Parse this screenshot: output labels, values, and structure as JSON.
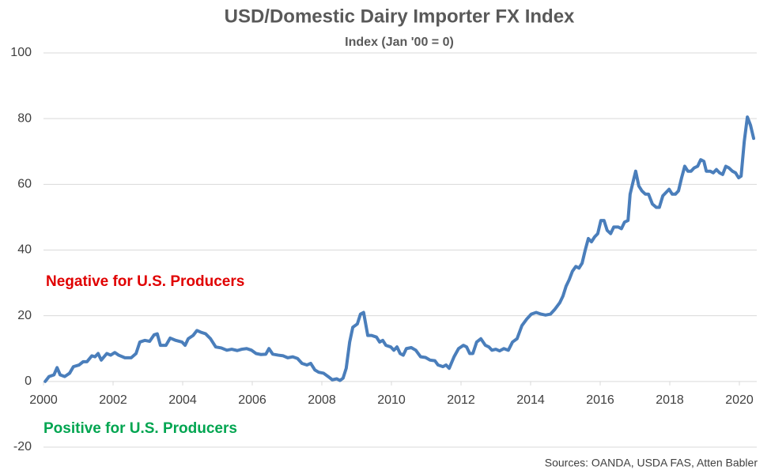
{
  "chart_data": {
    "type": "line",
    "title": "USD/Domestic Dairy Importer FX Index",
    "subtitle": "Index (Jan '00 = 0)",
    "source": "Sources: OANDA, USDA FAS, Atten Babler",
    "annotations": [
      {
        "text": "Negative for U.S. Producers",
        "color": "#e00000"
      },
      {
        "text": "Positive for U.S. Producers",
        "color": "#00a550"
      }
    ],
    "xlim": [
      2000,
      2020.5
    ],
    "xticks": [
      2000,
      2002,
      2004,
      2006,
      2008,
      2010,
      2012,
      2014,
      2016,
      2018,
      2020
    ],
    "ylim": [
      -20,
      100
    ],
    "yticks": [
      -20,
      0,
      20,
      40,
      60,
      80,
      100
    ],
    "grid": true,
    "series": [
      {
        "name": "USD/Domestic Dairy Importer FX Index",
        "color": "#4a7ebb",
        "x": [
          2000.05,
          2000.16,
          2000.3,
          2000.39,
          2000.48,
          2000.61,
          2000.75,
          2000.86,
          2001.02,
          2001.14,
          2001.25,
          2001.39,
          2001.48,
          2001.57,
          2001.66,
          2001.82,
          2001.93,
          2002.05,
          2002.16,
          2002.34,
          2002.52,
          2002.66,
          2002.77,
          2002.91,
          2003.05,
          2003.18,
          2003.27,
          2003.36,
          2003.52,
          2003.64,
          2003.8,
          2003.98,
          2004.07,
          2004.16,
          2004.3,
          2004.41,
          2004.52,
          2004.66,
          2004.8,
          2004.95,
          2005.11,
          2005.27,
          2005.41,
          2005.57,
          2005.7,
          2005.84,
          2005.98,
          2006.11,
          2006.25,
          2006.39,
          2006.48,
          2006.59,
          2006.75,
          2006.89,
          2007.02,
          2007.16,
          2007.3,
          2007.43,
          2007.57,
          2007.68,
          2007.8,
          2007.91,
          2008.05,
          2008.18,
          2008.3,
          2008.43,
          2008.52,
          2008.61,
          2008.7,
          2008.8,
          2008.89,
          2009.02,
          2009.11,
          2009.2,
          2009.32,
          2009.43,
          2009.57,
          2009.66,
          2009.75,
          2009.84,
          2009.98,
          2010.07,
          2010.16,
          2010.25,
          2010.34,
          2010.43,
          2010.57,
          2010.7,
          2010.84,
          2010.98,
          2011.11,
          2011.25,
          2011.34,
          2011.48,
          2011.57,
          2011.66,
          2011.8,
          2011.93,
          2012.07,
          2012.16,
          2012.25,
          2012.34,
          2012.45,
          2012.57,
          2012.7,
          2012.8,
          2012.89,
          2013.0,
          2013.11,
          2013.23,
          2013.36,
          2013.48,
          2013.61,
          2013.75,
          2013.89,
          2014.02,
          2014.16,
          2014.3,
          2014.43,
          2014.57,
          2014.7,
          2014.84,
          2014.93,
          2015.02,
          2015.11,
          2015.2,
          2015.3,
          2015.39,
          2015.48,
          2015.57,
          2015.66,
          2015.75,
          2015.84,
          2015.93,
          2016.02,
          2016.11,
          2016.2,
          2016.3,
          2016.39,
          2016.52,
          2016.61,
          2016.7,
          2016.8,
          2016.86,
          2016.95,
          2017.02,
          2017.11,
          2017.2,
          2017.3,
          2017.39,
          2017.5,
          2017.61,
          2017.7,
          2017.8,
          2017.89,
          2017.98,
          2018.07,
          2018.16,
          2018.25,
          2018.34,
          2018.43,
          2018.52,
          2018.61,
          2018.7,
          2018.8,
          2018.89,
          2018.98,
          2019.05,
          2019.16,
          2019.25,
          2019.34,
          2019.43,
          2019.52,
          2019.61,
          2019.7,
          2019.8,
          2019.89,
          2019.98,
          2020.05,
          2020.14,
          2020.23,
          2020.32,
          2020.41
        ],
        "values": [
          0,
          1.5,
          2,
          4.2,
          2,
          1.5,
          2.5,
          4.5,
          5,
          6,
          6,
          7.8,
          7.5,
          8.5,
          6.5,
          8.5,
          8,
          8.8,
          8,
          7.2,
          7.2,
          8.5,
          12,
          12.5,
          12.2,
          14.2,
          14.5,
          11,
          11,
          13.2,
          12.5,
          12,
          11,
          13,
          14,
          15.5,
          15,
          14.5,
          13,
          10.5,
          10.2,
          9.5,
          9.8,
          9.4,
          9.8,
          10,
          9.5,
          8.5,
          8.2,
          8.3,
          10,
          8.3,
          8,
          7.8,
          7.2,
          7.5,
          7,
          5.5,
          5,
          5.5,
          3.5,
          2.8,
          2.5,
          1.5,
          0.5,
          0.8,
          0.3,
          1,
          4,
          12,
          16.5,
          17.5,
          20.5,
          21,
          14,
          14,
          13.5,
          12,
          12.5,
          11,
          10.5,
          9.5,
          10.5,
          8.5,
          8,
          10,
          10.3,
          9.5,
          7.5,
          7.3,
          6.5,
          6.3,
          5,
          4.5,
          5,
          4,
          7.5,
          10,
          11,
          10.5,
          8.5,
          8.5,
          12,
          13,
          11,
          10.5,
          9.5,
          9.8,
          9.3,
          10,
          9.5,
          12,
          13,
          17,
          19,
          20.5,
          21,
          20.5,
          20.2,
          20.5,
          22,
          24,
          26,
          29,
          31,
          33.5,
          35,
          34.5,
          36,
          40,
          43.5,
          42.5,
          44,
          45,
          49,
          49,
          46,
          45,
          47,
          47,
          46.5,
          48.5,
          49,
          57,
          61,
          64,
          59.5,
          58,
          57,
          57,
          54,
          53,
          53,
          56.5,
          57.5,
          58.5,
          57,
          57,
          58,
          62,
          65.5,
          64,
          64,
          65,
          65.5,
          67.5,
          67,
          64,
          64,
          63.5,
          64.5,
          63.5,
          63,
          65.5,
          65,
          64,
          63.5,
          62,
          62.5,
          73,
          80.5,
          78,
          74
        ]
      }
    ]
  }
}
